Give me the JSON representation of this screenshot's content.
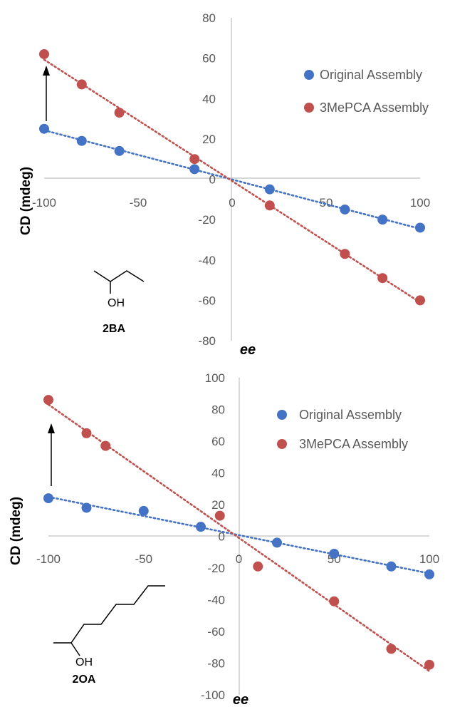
{
  "colors": {
    "original": "#4472C4",
    "mepca": "#C0504D",
    "axis": "#BFBFBF",
    "tick_text": "#595959",
    "arrow": "#000000"
  },
  "chart_data": [
    {
      "type": "scatter",
      "xlabel": "ee",
      "ylabel": "CD (mdeg)",
      "xlim": [
        -100,
        100
      ],
      "ylim": [
        -80,
        80
      ],
      "x_ticks": [
        "-100",
        "-50",
        "0",
        "50",
        "100"
      ],
      "y_ticks": [
        "80",
        "60",
        "40",
        "20",
        "0",
        "-20",
        "-40",
        "-60",
        "-80"
      ],
      "grid": false,
      "legend": "top-right",
      "trendline": "linear, dotted",
      "series": [
        {
          "name": "Original Assembly",
          "color": "#4472C4",
          "x": [
            -100,
            -80,
            -60,
            -20,
            20,
            60,
            80,
            100
          ],
          "y": [
            25,
            19,
            14,
            5,
            -5,
            -15,
            -20,
            -24
          ]
        },
        {
          "name": "3MePCA Assembly",
          "color": "#C0504D",
          "x": [
            -100,
            -80,
            -60,
            -20,
            20,
            60,
            80,
            100
          ],
          "y": [
            62,
            47,
            33,
            10,
            -13,
            -37,
            -49,
            -60
          ]
        }
      ],
      "annotation": {
        "molecule_label": "2BA",
        "oh_label": "OH"
      }
    },
    {
      "type": "scatter",
      "xlabel": "ee",
      "ylabel": "CD (mdeg)",
      "xlim": [
        -100,
        100
      ],
      "ylim": [
        -100,
        100
      ],
      "x_ticks": [
        "-100",
        "-50",
        "0",
        "50",
        "100"
      ],
      "y_ticks": [
        "100",
        "80",
        "60",
        "40",
        "20",
        "0",
        "-20",
        "-40",
        "-60",
        "-80",
        "-100"
      ],
      "grid": false,
      "legend": "top-right",
      "trendline": "linear, dotted",
      "series": [
        {
          "name": "Original Assembly",
          "color": "#4472C4",
          "x": [
            -100,
            -80,
            -50,
            -20,
            20,
            50,
            80,
            100
          ],
          "y": [
            24,
            18,
            16,
            6,
            -4,
            -11,
            -19,
            -24
          ]
        },
        {
          "name": "3MePCA Assembly",
          "color": "#C0504D",
          "x": [
            -100,
            -80,
            -70,
            -10,
            10,
            50,
            80,
            100
          ],
          "y": [
            86,
            65,
            57,
            13,
            -19,
            -41,
            -71,
            -81
          ]
        }
      ],
      "annotation": {
        "molecule_label": "2OA",
        "oh_label": "OH"
      }
    }
  ]
}
